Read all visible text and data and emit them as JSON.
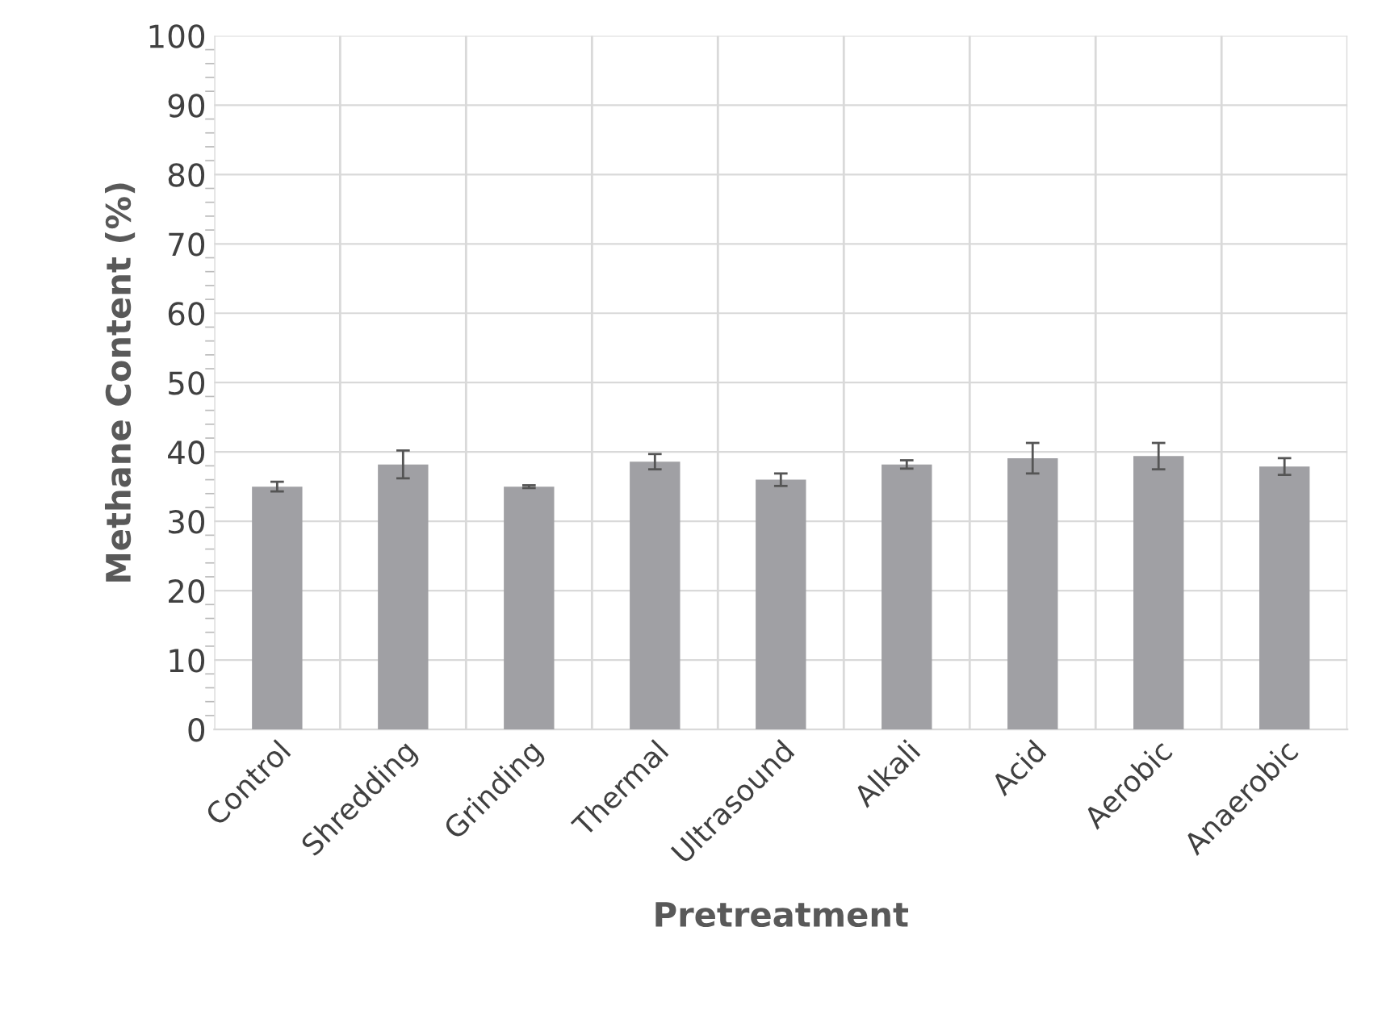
{
  "chart_data": {
    "type": "bar",
    "xlabel": "Pretreatment",
    "ylabel": "Methane Content (%)",
    "categories": [
      "Control",
      "Shredding",
      "Grinding",
      "Thermal",
      "Ultrasound",
      "Alkali",
      "Acid",
      "Aerobic",
      "Anaerobic"
    ],
    "values": [
      35.0,
      38.2,
      35.0,
      38.6,
      36.0,
      38.2,
      39.1,
      39.4,
      37.9
    ],
    "errors": [
      0.7,
      2.0,
      0.2,
      1.1,
      0.9,
      0.6,
      2.2,
      1.9,
      1.2
    ],
    "color": "#a0a0a4",
    "ylim": [
      0,
      100
    ],
    "yticks": [
      0,
      10,
      20,
      30,
      40,
      50,
      60,
      70,
      80,
      90,
      100
    ],
    "grid": true
  }
}
